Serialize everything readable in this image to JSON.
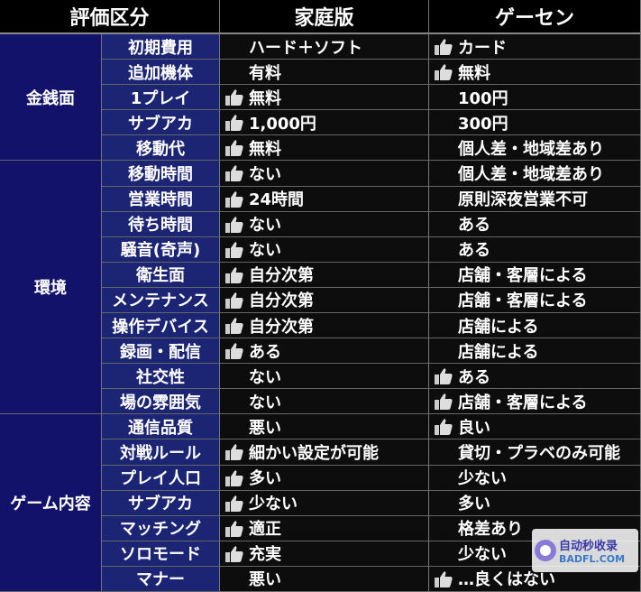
{
  "header": {
    "category": "評価区分",
    "home": "家庭版",
    "arcade": "ゲーセン"
  },
  "groups": [
    {
      "label": "金銭面",
      "rows": [
        {
          "item": "初期費用",
          "home": {
            "text": "ハード＋ソフト",
            "thumb": false
          },
          "arcade": {
            "text": "カード",
            "thumb": true
          }
        },
        {
          "item": "追加機体",
          "home": {
            "text": "有料",
            "thumb": false
          },
          "arcade": {
            "text": "無料",
            "thumb": true
          }
        },
        {
          "item": "1プレイ",
          "home": {
            "text": "無料",
            "thumb": true
          },
          "arcade": {
            "text": "100円",
            "thumb": false
          }
        },
        {
          "item": "サブアカ",
          "home": {
            "text": "1,000円",
            "thumb": true
          },
          "arcade": {
            "text": "300円",
            "thumb": false
          }
        },
        {
          "item": "移動代",
          "home": {
            "text": "無料",
            "thumb": true
          },
          "arcade": {
            "text": "個人差・地域差あり",
            "thumb": false
          }
        }
      ]
    },
    {
      "label": "環境",
      "rows": [
        {
          "item": "移動時間",
          "home": {
            "text": "ない",
            "thumb": true
          },
          "arcade": {
            "text": "個人差・地域差あり",
            "thumb": false
          }
        },
        {
          "item": "営業時間",
          "home": {
            "text": "24時間",
            "thumb": true
          },
          "arcade": {
            "text": "原則深夜営業不可",
            "thumb": false
          }
        },
        {
          "item": "待ち時間",
          "home": {
            "text": "ない",
            "thumb": true
          },
          "arcade": {
            "text": "ある",
            "thumb": false
          }
        },
        {
          "item": "騒音(奇声)",
          "home": {
            "text": "ない",
            "thumb": true
          },
          "arcade": {
            "text": "ある",
            "thumb": false
          }
        },
        {
          "item": "衛生面",
          "home": {
            "text": "自分次第",
            "thumb": true
          },
          "arcade": {
            "text": "店舗・客層による",
            "thumb": false
          }
        },
        {
          "item": "メンテナンス",
          "home": {
            "text": "自分次第",
            "thumb": true
          },
          "arcade": {
            "text": "店舗・客層による",
            "thumb": false
          }
        },
        {
          "item": "操作デバイス",
          "home": {
            "text": "自分次第",
            "thumb": true
          },
          "arcade": {
            "text": "店舗による",
            "thumb": false
          }
        },
        {
          "item": "録画・配信",
          "home": {
            "text": "ある",
            "thumb": true
          },
          "arcade": {
            "text": "店舗による",
            "thumb": false
          }
        },
        {
          "item": "社交性",
          "home": {
            "text": "ない",
            "thumb": false
          },
          "arcade": {
            "text": "ある",
            "thumb": true
          }
        },
        {
          "item": "場の雰囲気",
          "home": {
            "text": "ない",
            "thumb": false
          },
          "arcade": {
            "text": "店舗・客層による",
            "thumb": true
          }
        }
      ]
    },
    {
      "label": "ゲーム内容",
      "rows": [
        {
          "item": "通信品質",
          "home": {
            "text": "悪い",
            "thumb": false
          },
          "arcade": {
            "text": "良い",
            "thumb": true
          }
        },
        {
          "item": "対戦ルール",
          "home": {
            "text": "細かい設定が可能",
            "thumb": true
          },
          "arcade": {
            "text": "貸切・プラベのみ可能",
            "thumb": false
          }
        },
        {
          "item": "プレイ人口",
          "home": {
            "text": "多い",
            "thumb": true
          },
          "arcade": {
            "text": "少ない",
            "thumb": false
          }
        },
        {
          "item": "サブアカ",
          "home": {
            "text": "少ない",
            "thumb": true
          },
          "arcade": {
            "text": "多い",
            "thumb": false
          }
        },
        {
          "item": "マッチング",
          "home": {
            "text": "適正",
            "thumb": true
          },
          "arcade": {
            "text": "格差あり",
            "thumb": false
          }
        },
        {
          "item": "ソロモード",
          "home": {
            "text": "充実",
            "thumb": true
          },
          "arcade": {
            "text": "少ない",
            "thumb": false
          }
        },
        {
          "item": "マナー",
          "home": {
            "text": "悪い",
            "thumb": false
          },
          "arcade": {
            "text": "…良くはない",
            "thumb": true
          }
        }
      ]
    }
  ],
  "watermark": {
    "line1": "自动秒收录",
    "line2": "BADFL.COM"
  }
}
